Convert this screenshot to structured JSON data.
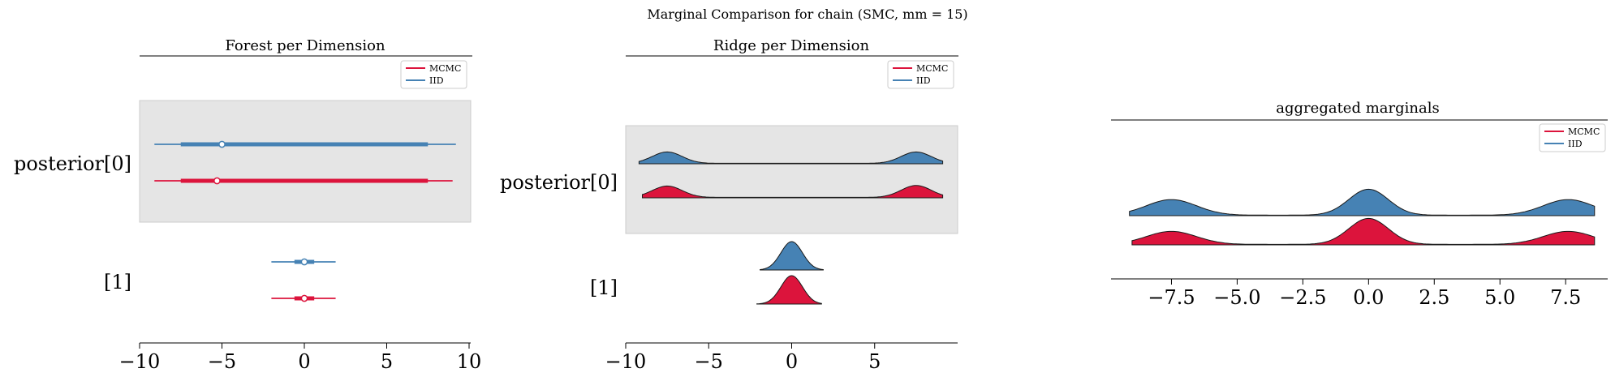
{
  "figure": {
    "title": "Marginal Comparison for chain (SMC, mm = 15)"
  },
  "colors": {
    "mcmc": "#dc143c",
    "iid": "#4682b4",
    "shade": "#e5e5e5"
  },
  "chart_data": [
    {
      "type": "forest",
      "title": "Forest per Dimension",
      "xlim": [
        -10,
        10
      ],
      "xticks": [
        -10,
        -5,
        0,
        5,
        10
      ],
      "xtick_labels": [
        "−10",
        "−5",
        "0",
        "5",
        "10"
      ],
      "rows": [
        "posterior[0]",
        "[1]"
      ],
      "legend": [
        "MCMC",
        "IID"
      ],
      "legend_loc": "top-right",
      "series": [
        {
          "name": "IID",
          "stats": [
            {
              "row": "posterior[0]",
              "median": -5.0,
              "q_low": -7.5,
              "q_high": 7.5,
              "hdi_low": -9.1,
              "hdi_high": 9.2
            },
            {
              "row": "[1]",
              "median": 0.0,
              "q_low": -0.6,
              "q_high": 0.6,
              "hdi_low": -2.0,
              "hdi_high": 1.9
            }
          ]
        },
        {
          "name": "MCMC",
          "stats": [
            {
              "row": "posterior[0]",
              "median": -5.3,
              "q_low": -7.5,
              "q_high": 7.5,
              "hdi_low": -9.1,
              "hdi_high": 9.0
            },
            {
              "row": "[1]",
              "median": 0.0,
              "q_low": -0.6,
              "q_high": 0.6,
              "hdi_low": -2.0,
              "hdi_high": 1.9
            }
          ]
        }
      ]
    },
    {
      "type": "ridge",
      "title": "Ridge per Dimension",
      "xlim": [
        -10,
        10
      ],
      "xticks": [
        -10,
        -5,
        0,
        5
      ],
      "xtick_labels": [
        "−10",
        "−5",
        "0",
        "5"
      ],
      "rows": [
        "posterior[0]",
        "[1]"
      ],
      "legend": [
        "MCMC",
        "IID"
      ],
      "legend_loc": "top-right",
      "series": [
        {
          "name": "IID",
          "ridges": [
            {
              "row": "posterior[0]",
              "range": [
                -9.2,
                9.1
              ],
              "components": [
                {
                  "mu": -7.5,
                  "sd": 0.9,
                  "w": 1.0
                },
                {
                  "mu": 7.5,
                  "sd": 0.9,
                  "w": 1.0
                }
              ],
              "floor": 0.04
            },
            {
              "row": "[1]",
              "range": [
                -1.9,
                1.9
              ],
              "components": [
                {
                  "mu": 0.0,
                  "sd": 0.65,
                  "w": 1.0
                }
              ],
              "floor": 0.0
            }
          ]
        },
        {
          "name": "MCMC",
          "ridges": [
            {
              "row": "posterior[0]",
              "range": [
                -9.0,
                9.1
              ],
              "components": [
                {
                  "mu": -7.5,
                  "sd": 0.9,
                  "w": 1.0
                },
                {
                  "mu": 7.5,
                  "sd": 0.9,
                  "w": 1.05
                }
              ],
              "floor": 0.04
            },
            {
              "row": "[1]",
              "range": [
                -2.1,
                1.8
              ],
              "components": [
                {
                  "mu": 0.0,
                  "sd": 0.65,
                  "w": 1.0
                }
              ],
              "floor": 0.0
            }
          ]
        }
      ]
    },
    {
      "type": "density",
      "title": "aggregated marginals",
      "xlim": [
        -9.8,
        9.1
      ],
      "xticks": [
        -7.5,
        -5.0,
        -2.5,
        0.0,
        2.5,
        5.0,
        7.5
      ],
      "xtick_labels": [
        "−7.5",
        "−5.0",
        "−2.5",
        "0.0",
        "2.5",
        "5.0",
        "7.5"
      ],
      "legend": [
        "MCMC",
        "IID"
      ],
      "legend_loc": "top-right",
      "series": [
        {
          "name": "IID",
          "range": [
            -9.1,
            8.6
          ],
          "components": [
            {
              "mu": -7.5,
              "sd": 0.95,
              "w": 0.6
            },
            {
              "mu": 0.0,
              "sd": 0.75,
              "w": 1.0
            },
            {
              "mu": 7.6,
              "sd": 0.95,
              "w": 0.6
            }
          ],
          "floor": 0.02
        },
        {
          "name": "MCMC",
          "range": [
            -9.0,
            8.6
          ],
          "components": [
            {
              "mu": -7.5,
              "sd": 0.95,
              "w": 0.5
            },
            {
              "mu": 0.0,
              "sd": 0.75,
              "w": 1.0
            },
            {
              "mu": 7.6,
              "sd": 0.95,
              "w": 0.5
            }
          ],
          "floor": 0.02
        }
      ]
    }
  ]
}
